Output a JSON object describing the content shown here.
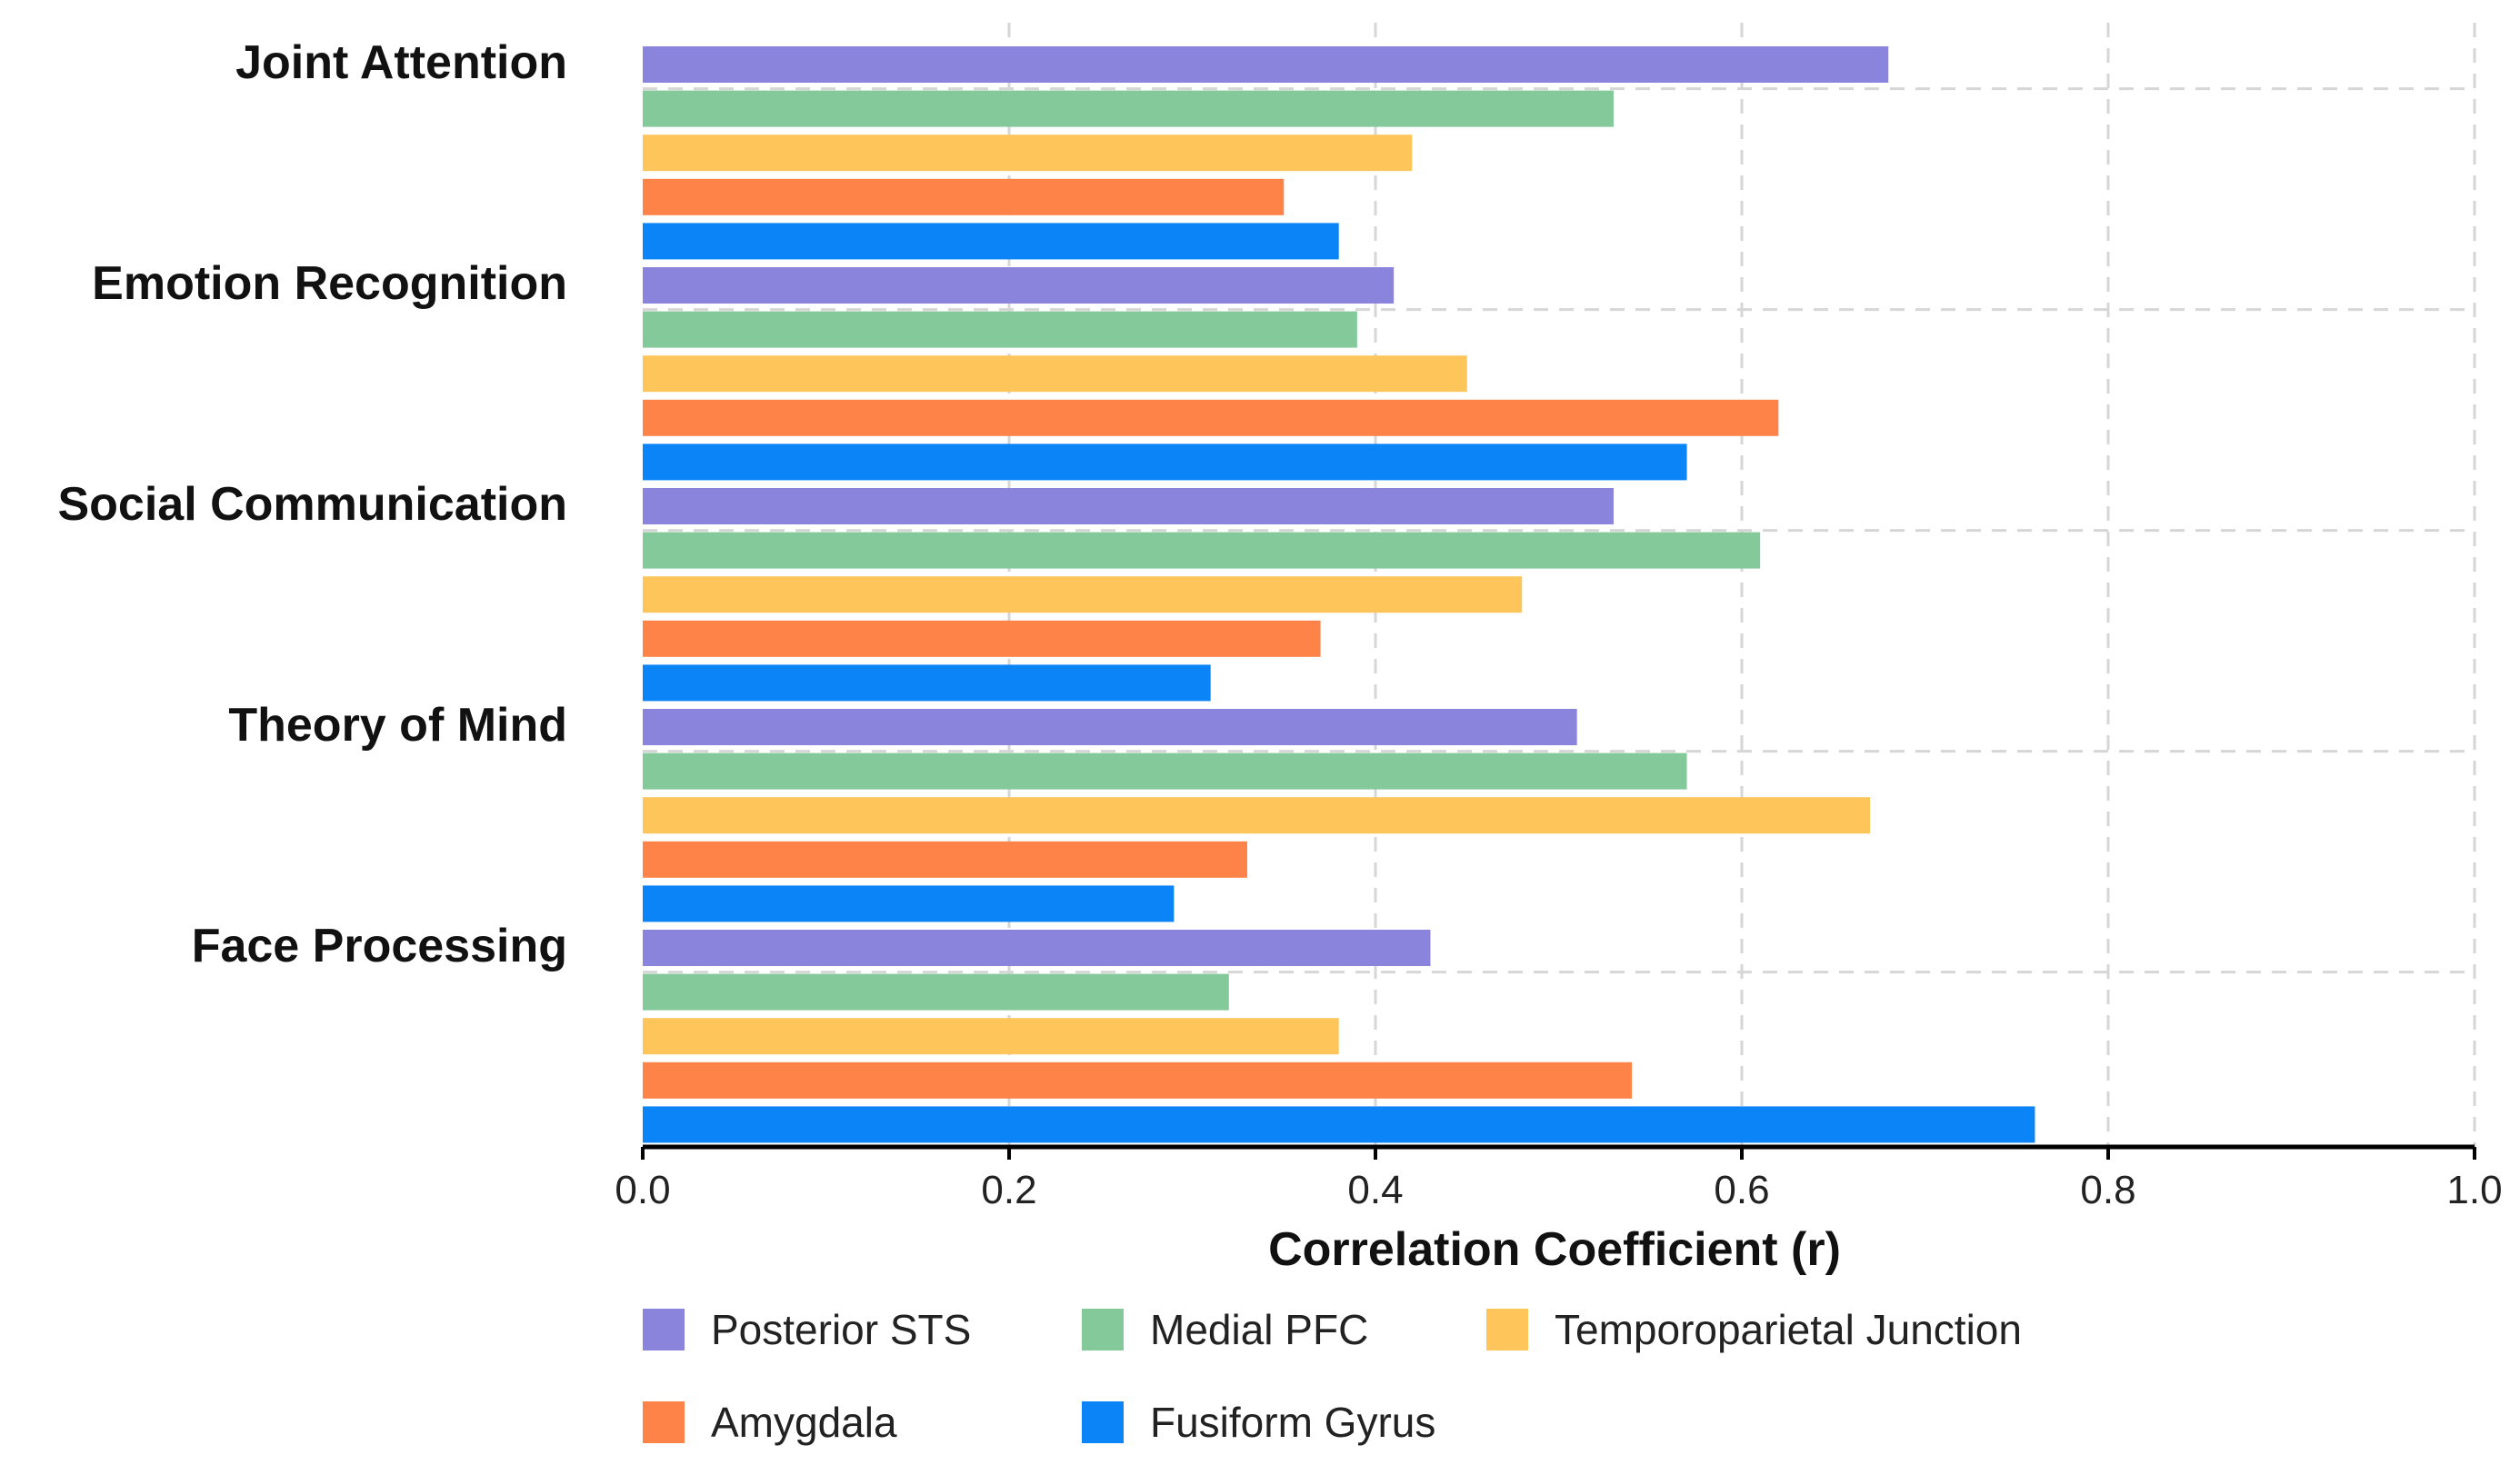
{
  "chart_data": {
    "type": "bar",
    "orientation": "horizontal",
    "categories": [
      "Joint Attention",
      "Emotion Recognition",
      "Social Communication",
      "Theory of Mind",
      "Face Processing"
    ],
    "series": [
      {
        "name": "Posterior STS",
        "color": "#8b84dd",
        "values": [
          0.68,
          0.41,
          0.53,
          0.51,
          0.43
        ]
      },
      {
        "name": "Medial PFC",
        "color": "#84c99a",
        "values": [
          0.53,
          0.39,
          0.61,
          0.57,
          0.32
        ]
      },
      {
        "name": "Temporoparietal Junction",
        "color": "#fec55b",
        "values": [
          0.42,
          0.45,
          0.48,
          0.67,
          0.38
        ]
      },
      {
        "name": "Amygdala",
        "color": "#fe8348",
        "values": [
          0.35,
          0.62,
          0.37,
          0.33,
          0.54
        ]
      },
      {
        "name": "Fusiform Gyrus",
        "color": "#0a84f6",
        "values": [
          0.38,
          0.57,
          0.31,
          0.29,
          0.76
        ]
      }
    ],
    "title": "",
    "xlabel": "Correlation Coefficient (r)",
    "ylabel": "",
    "xlim": [
      0.0,
      1.0
    ],
    "xticks": [
      "0.0",
      "0.2",
      "0.4",
      "0.6",
      "0.8",
      "1.0"
    ],
    "grid": true,
    "legend_position": "bottom"
  }
}
